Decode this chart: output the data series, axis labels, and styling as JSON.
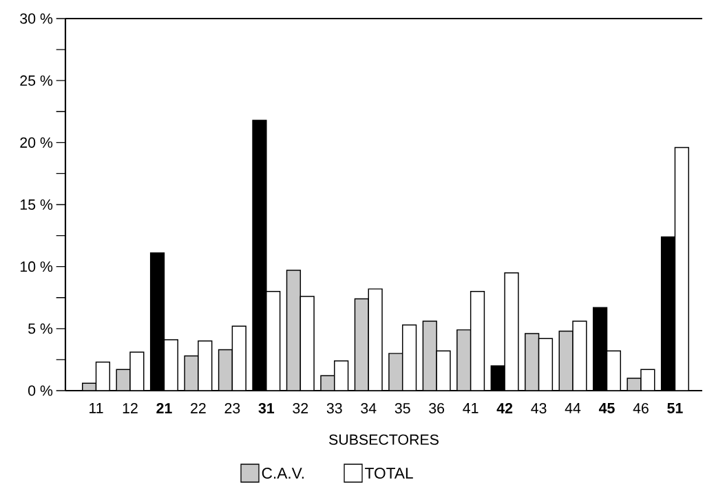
{
  "chart_data": {
    "type": "bar",
    "xlabel": "SUBSECTORES",
    "categories": [
      "11",
      "12",
      "**21**",
      "22",
      "23",
      "**31**",
      "32",
      "33",
      "34",
      "35",
      "36",
      "41",
      "**42**",
      "43",
      "44",
      "**45**",
      "46",
      "**51**"
    ],
    "series": [
      {
        "name": "C.A.V.",
        "color": "#c8c8c8",
        "colors": [
          "#c8c8c8",
          "#c8c8c8",
          "#000000",
          "#c8c8c8",
          "#c8c8c8",
          "#000000",
          "#c8c8c8",
          "#c8c8c8",
          "#c8c8c8",
          "#c8c8c8",
          "#c8c8c8",
          "#c8c8c8",
          "#000000",
          "#c8c8c8",
          "#c8c8c8",
          "#000000",
          "#c8c8c8",
          "#000000"
        ],
        "values": [
          0.6,
          1.7,
          11.1,
          2.8,
          3.3,
          21.8,
          9.7,
          1.2,
          7.4,
          3.0,
          5.6,
          4.9,
          2.0,
          4.6,
          4.8,
          6.7,
          1.0,
          12.4
        ]
      },
      {
        "name": "TOTAL",
        "color": "#ffffff",
        "values": [
          2.3,
          3.1,
          4.1,
          4.0,
          5.2,
          8.0,
          7.6,
          2.4,
          8.2,
          5.3,
          3.2,
          8.0,
          9.5,
          4.2,
          5.6,
          3.2,
          1.7,
          19.6
        ]
      }
    ],
    "ylim": [
      0,
      30
    ],
    "yticks": [
      {
        "value": 0,
        "label": "0 %"
      },
      {
        "value": 2.5,
        "label": null
      },
      {
        "value": 5,
        "label": "5 %"
      },
      {
        "value": 7.5,
        "label": null
      },
      {
        "value": 10,
        "label": "10 %"
      },
      {
        "value": 12.5,
        "label": null
      },
      {
        "value": 15,
        "label": "15 %"
      },
      {
        "value": 17.5,
        "label": null
      },
      {
        "value": 20,
        "label": "20 %"
      },
      {
        "value": 22.5,
        "label": null
      },
      {
        "value": 25,
        "label": "25 %"
      },
      {
        "value": 27.5,
        "label": null
      },
      {
        "value": 30,
        "label": "30 %"
      }
    ],
    "legend": "bottom"
  }
}
